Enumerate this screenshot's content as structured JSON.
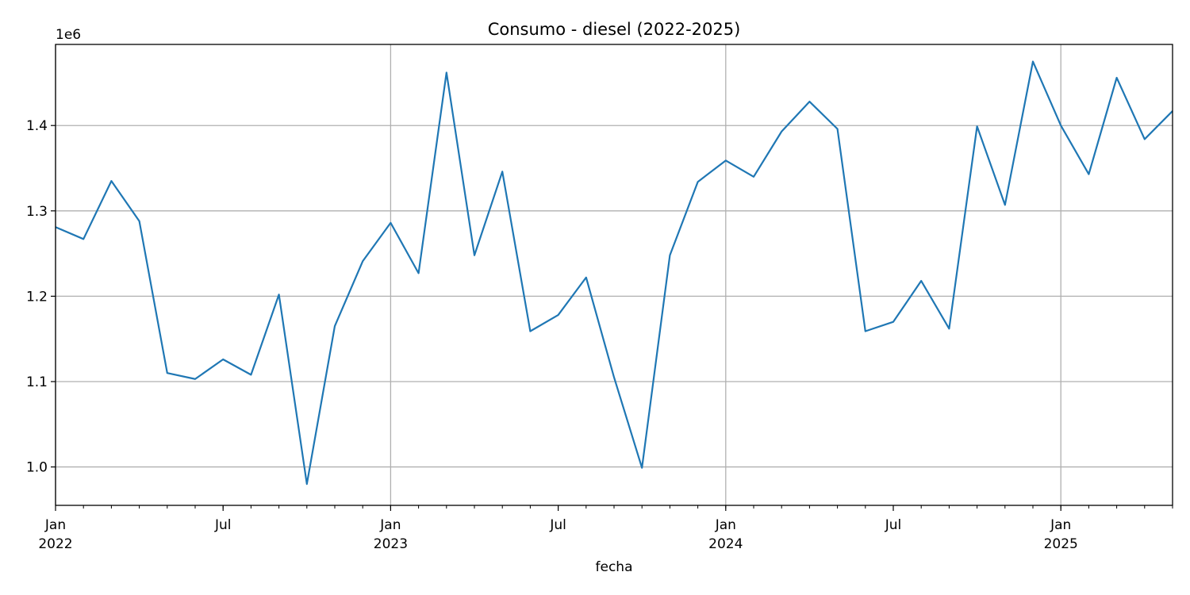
{
  "chart_data": {
    "type": "line",
    "title": "Consumo - diesel (2022-2025)",
    "xlabel": "fecha",
    "ylabel": "",
    "y_offset_label": "1e6",
    "grid": true,
    "legend": "none",
    "colors": {
      "line": "#1f77b4",
      "grid": "#b0b0b0",
      "axes": "#000000"
    },
    "xlim": [
      "2022-01",
      "2025-05"
    ],
    "ylim": [
      955000,
      1495000
    ],
    "y_ticks": [
      {
        "value": 1000000,
        "label": "1.0"
      },
      {
        "value": 1100000,
        "label": "1.1"
      },
      {
        "value": 1200000,
        "label": "1.2"
      },
      {
        "value": 1300000,
        "label": "1.3"
      },
      {
        "value": 1400000,
        "label": "1.4"
      }
    ],
    "x_major_ticks": [
      {
        "x": "2022-01",
        "label": "Jan",
        "year": "2022"
      },
      {
        "x": "2022-07",
        "label": "Jul",
        "year": ""
      },
      {
        "x": "2023-01",
        "label": "Jan",
        "year": "2023"
      },
      {
        "x": "2023-07",
        "label": "Jul",
        "year": ""
      },
      {
        "x": "2024-01",
        "label": "Jan",
        "year": "2024"
      },
      {
        "x": "2024-07",
        "label": "Jul",
        "year": ""
      },
      {
        "x": "2025-01",
        "label": "Jan",
        "year": "2025"
      }
    ],
    "series": [
      {
        "x": [
          "2022-01",
          "2022-02",
          "2022-03",
          "2022-04",
          "2022-05",
          "2022-06",
          "2022-07",
          "2022-08",
          "2022-09",
          "2022-10",
          "2022-11",
          "2022-12",
          "2023-01",
          "2023-02",
          "2023-03",
          "2023-04",
          "2023-05",
          "2023-06",
          "2023-07",
          "2023-08",
          "2023-09",
          "2023-10",
          "2023-11",
          "2023-12",
          "2024-01",
          "2024-02",
          "2024-03",
          "2024-04",
          "2024-05",
          "2024-06",
          "2024-07",
          "2024-08",
          "2024-09",
          "2024-10",
          "2024-11",
          "2024-12",
          "2025-01",
          "2025-02",
          "2025-03",
          "2025-04",
          "2025-05"
        ],
        "values": [
          1281000,
          1267000,
          1335000,
          1288000,
          1110000,
          1103000,
          1126000,
          1108000,
          1202000,
          980000,
          1165000,
          1241000,
          1286000,
          1227000,
          1462000,
          1248000,
          1346000,
          1159000,
          1178000,
          1222000,
          1105000,
          999000,
          1248000,
          1334000,
          1359000,
          1340000,
          1393000,
          1428000,
          1396000,
          1159000,
          1170000,
          1218000,
          1162000,
          1399000,
          1307000,
          1475000,
          1400000,
          1343000,
          1456000,
          1384000,
          1417000
        ]
      }
    ]
  }
}
